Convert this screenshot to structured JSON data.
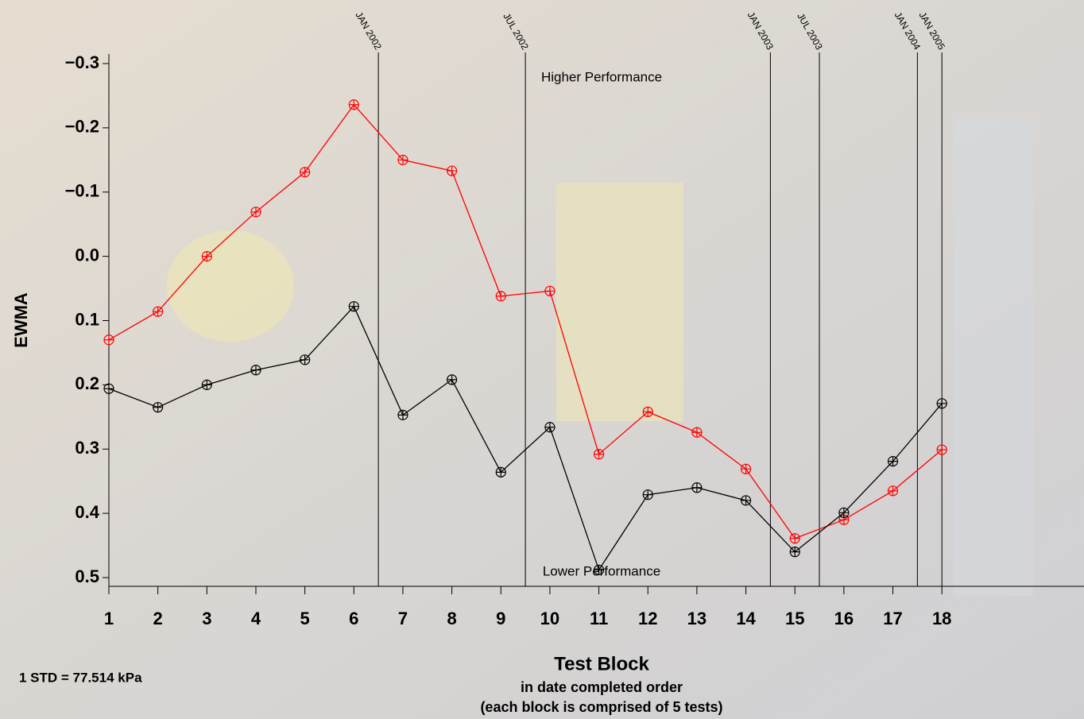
{
  "chart_data": {
    "type": "line",
    "title": "Higher Performance",
    "annotations": [
      "Lower Performance",
      "1 STD = 77.514 kPa"
    ],
    "x_label": "Test Block",
    "x_sublabels": [
      "in date completed order",
      "(each block is comprised of 5 tests)"
    ],
    "y_label": "EWMA",
    "x": [
      1,
      2,
      3,
      4,
      5,
      6,
      7,
      8,
      9,
      10,
      11,
      12,
      13,
      14,
      15,
      16,
      17,
      18
    ],
    "series": [
      {
        "color": "#ff0000",
        "values": [
          0.13,
          0.086,
          0.0,
          -0.069,
          -0.131,
          -0.236,
          -0.15,
          -0.133,
          0.062,
          0.054,
          0.308,
          0.242,
          0.274,
          0.331,
          0.439,
          0.41,
          0.365,
          0.301
        ]
      },
      {
        "color": "#000000",
        "values": [
          0.206,
          0.235,
          0.2,
          0.177,
          0.161,
          0.078,
          0.247,
          0.192,
          0.336,
          0.266,
          0.488,
          0.371,
          0.36,
          0.38,
          0.46,
          0.399,
          0.319,
          0.229
        ]
      }
    ],
    "xlim": [
      1,
      20.9
    ],
    "xticks": [
      1,
      2,
      3,
      4,
      5,
      6,
      7,
      8,
      9,
      10,
      11,
      12,
      13,
      14,
      15,
      16,
      17,
      18
    ],
    "ylim": [
      -0.3,
      0.5
    ],
    "y_inverted": true,
    "yticks": [
      {
        "value": -0.3,
        "label": "−0.3"
      },
      {
        "value": -0.2,
        "label": "−0.2"
      },
      {
        "value": -0.1,
        "label": "−0.1"
      },
      {
        "value": 0,
        "label": "0.0"
      },
      0.1,
      0.2,
      0.3,
      0.4,
      0.5
    ],
    "events": [
      {
        "x": 6.5,
        "label": "JAN 2002"
      },
      {
        "x": 9.5,
        "label": "JUL 2002"
      },
      {
        "x": 14.5,
        "label": "JAN 2003"
      },
      {
        "x": 15.5,
        "label": "JUL 2003"
      },
      {
        "x": 17.5,
        "label": "JAN 2004"
      },
      {
        "x": 18,
        "label": "JAN 2005"
      }
    ]
  }
}
